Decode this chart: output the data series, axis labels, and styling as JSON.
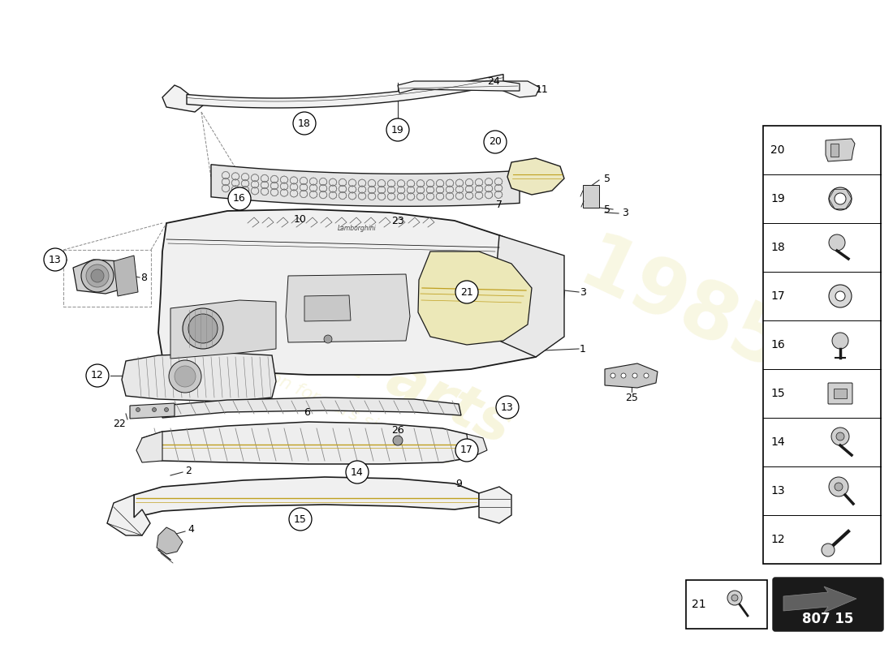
{
  "background_color": "#ffffff",
  "part_number": "807 15",
  "colors": {
    "line": "#1a1a1a",
    "part_fill": "#f2f2f2",
    "part_fill_dark": "#e0e0e0",
    "mesh_fill": "#e8e8e8",
    "light_yellow": "#e8e4b0",
    "legend_border": "#000000",
    "legend_bg": "#ffffff",
    "part_num_bg": "#1a1a1a",
    "part_num_text": "#ffffff",
    "watermark_gold": "#d4c840",
    "dashed": "#888888",
    "leader": "#333333"
  },
  "legend_items": [
    20,
    19,
    18,
    17,
    16,
    15,
    14,
    13,
    12
  ]
}
